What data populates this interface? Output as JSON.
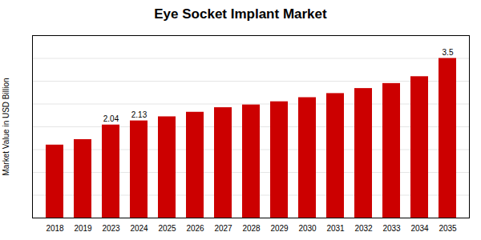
{
  "chart_data": {
    "type": "bar",
    "title": "Eye Socket Implant Market",
    "ylabel": "Market Value in USD Billion",
    "categories": [
      "2018",
      "2019",
      "2023",
      "2024",
      "2025",
      "2026",
      "2027",
      "2028",
      "2029",
      "2030",
      "2031",
      "2032",
      "2033",
      "2034",
      "2035"
    ],
    "values": [
      1.6,
      1.72,
      2.04,
      2.13,
      2.22,
      2.32,
      2.42,
      2.48,
      2.55,
      2.64,
      2.73,
      2.84,
      2.95,
      3.1,
      3.5
    ],
    "color": "#cc0000",
    "annotations": [
      {
        "category": "2023",
        "text": "2.04"
      },
      {
        "category": "2024",
        "text": "2.13"
      },
      {
        "category": "2035",
        "text": "3.5"
      }
    ],
    "ylim": [
      0,
      4.0
    ],
    "yticks": [
      0.5,
      1.0,
      1.5,
      2.0,
      2.5,
      3.0,
      3.5
    ],
    "grid": true,
    "tick_labels": "x"
  }
}
